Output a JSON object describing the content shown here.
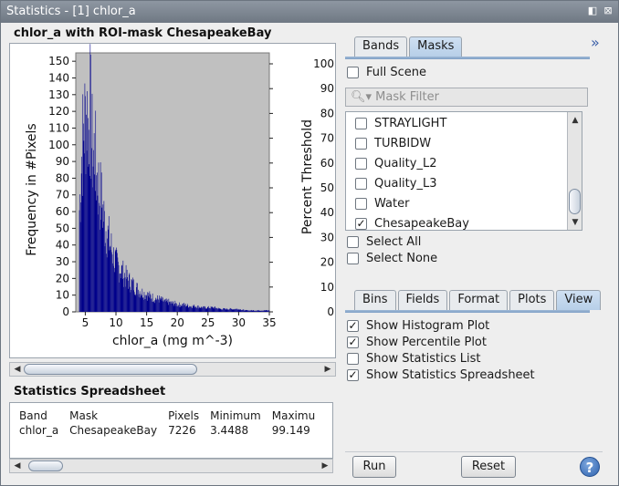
{
  "window": {
    "title": "Statistics - [1] chlor_a",
    "icons": [
      "restore-icon",
      "close-icon"
    ]
  },
  "plot": {
    "title": "chlor_a with ROI-mask ChesapeakeBay"
  },
  "chart_data": {
    "type": "bar",
    "xlabel": "chlor_a (mg m^-3)",
    "ylabel": "Frequency in #Pixels",
    "ylabel_right": "Percent Threshold",
    "x_ticks": [
      "5",
      "10",
      "15",
      "20",
      "25",
      "30",
      "35"
    ],
    "y_ticks": [
      "0",
      "10",
      "20",
      "30",
      "40",
      "50",
      "60",
      "70",
      "80",
      "90",
      "100",
      "110",
      "120",
      "130",
      "140",
      "150"
    ],
    "y2_ticks": [
      "0",
      "10",
      "20",
      "30",
      "40",
      "50",
      "60",
      "70",
      "80",
      "90",
      "100"
    ],
    "xlim": [
      3.4488,
      35
    ],
    "ylim": [
      0,
      155
    ],
    "y2lim": [
      0,
      100
    ],
    "bar_color": "#00008b",
    "plot_background": "#c0c0c0",
    "bins": [
      {
        "x": 4.0,
        "y": 72
      },
      {
        "x": 4.25,
        "y": 95
      },
      {
        "x": 4.5,
        "y": 118
      },
      {
        "x": 4.75,
        "y": 130
      },
      {
        "x": 5.0,
        "y": 138
      },
      {
        "x": 5.25,
        "y": 140
      },
      {
        "x": 5.5,
        "y": 128
      },
      {
        "x": 5.75,
        "y": 145
      },
      {
        "x": 6.0,
        "y": 120
      },
      {
        "x": 6.25,
        "y": 108
      },
      {
        "x": 6.5,
        "y": 115
      },
      {
        "x": 6.75,
        "y": 98
      },
      {
        "x": 7.0,
        "y": 92
      },
      {
        "x": 7.25,
        "y": 84
      },
      {
        "x": 7.5,
        "y": 80
      },
      {
        "x": 7.75,
        "y": 73
      },
      {
        "x": 8.0,
        "y": 66
      },
      {
        "x": 8.25,
        "y": 60
      },
      {
        "x": 8.5,
        "y": 56
      },
      {
        "x": 8.75,
        "y": 52
      },
      {
        "x": 9.0,
        "y": 47
      },
      {
        "x": 9.25,
        "y": 44
      },
      {
        "x": 9.5,
        "y": 40
      },
      {
        "x": 9.75,
        "y": 37
      },
      {
        "x": 10.0,
        "y": 34
      },
      {
        "x": 10.5,
        "y": 31
      },
      {
        "x": 11.0,
        "y": 28
      },
      {
        "x": 11.5,
        "y": 25
      },
      {
        "x": 12.0,
        "y": 22
      },
      {
        "x": 12.5,
        "y": 20
      },
      {
        "x": 13.0,
        "y": 18
      },
      {
        "x": 13.5,
        "y": 16
      },
      {
        "x": 14.0,
        "y": 14
      },
      {
        "x": 14.5,
        "y": 13
      },
      {
        "x": 15.0,
        "y": 12
      },
      {
        "x": 15.5,
        "y": 11
      },
      {
        "x": 16.0,
        "y": 10
      },
      {
        "x": 16.5,
        "y": 9
      },
      {
        "x": 17.0,
        "y": 9
      },
      {
        "x": 17.5,
        "y": 8
      },
      {
        "x": 18.0,
        "y": 7
      },
      {
        "x": 18.5,
        "y": 7
      },
      {
        "x": 19.0,
        "y": 6
      },
      {
        "x": 19.5,
        "y": 6
      },
      {
        "x": 20.0,
        "y": 5
      },
      {
        "x": 21.0,
        "y": 5
      },
      {
        "x": 22.0,
        "y": 4
      },
      {
        "x": 23.0,
        "y": 4
      },
      {
        "x": 24.0,
        "y": 3
      },
      {
        "x": 25.0,
        "y": 3
      },
      {
        "x": 26.0,
        "y": 3
      },
      {
        "x": 27.0,
        "y": 2
      },
      {
        "x": 28.0,
        "y": 2
      },
      {
        "x": 29.0,
        "y": 2
      },
      {
        "x": 30.0,
        "y": 2
      },
      {
        "x": 31.0,
        "y": 1
      },
      {
        "x": 32.0,
        "y": 1
      },
      {
        "x": 33.0,
        "y": 1
      },
      {
        "x": 34.0,
        "y": 1
      },
      {
        "x": 35.0,
        "y": 1
      }
    ]
  },
  "spreadsheet": {
    "title": "Statistics Spreadsheet",
    "columns": [
      "Band",
      "Mask",
      "Pixels",
      "Minimum",
      "Maximu"
    ],
    "rows": [
      [
        "chlor_a",
        "ChesapeakeBay",
        "7226",
        "3.4488",
        "99.149"
      ]
    ]
  },
  "right": {
    "top_tabs": [
      "Bands",
      "Masks"
    ],
    "active_top_tab": "Masks",
    "expand_icon": "double-chevron-right-icon",
    "full_scene_label": "Full Scene",
    "full_scene_checked": false,
    "mask_filter_placeholder": "Mask Filter",
    "masks": [
      {
        "label": "STRAYLIGHT",
        "checked": false
      },
      {
        "label": "TURBIDW",
        "checked": false
      },
      {
        "label": "Quality_L2",
        "checked": false
      },
      {
        "label": "Quality_L3",
        "checked": false
      },
      {
        "label": "Water",
        "checked": false
      },
      {
        "label": "ChesapeakeBay",
        "checked": true
      }
    ],
    "select_all_label": "Select All",
    "select_none_label": "Select None",
    "bottom_tabs": [
      "Bins",
      "Fields",
      "Format",
      "Plots",
      "View"
    ],
    "active_bottom_tab": "View",
    "view_options": [
      {
        "label": "Show Histogram Plot",
        "checked": true
      },
      {
        "label": "Show Percentile Plot",
        "checked": true
      },
      {
        "label": "Show Statistics List",
        "checked": false
      },
      {
        "label": "Show Statistics Spreadsheet",
        "checked": true
      }
    ],
    "run_label": "Run",
    "reset_label": "Reset",
    "help_label": "?"
  }
}
